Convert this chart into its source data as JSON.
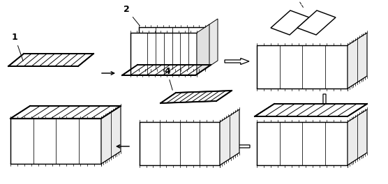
{
  "bg_color": "#ffffff",
  "line_color": "#000000",
  "fig_width": 5.56,
  "fig_height": 2.64,
  "dpi": 100,
  "lw": 0.7
}
